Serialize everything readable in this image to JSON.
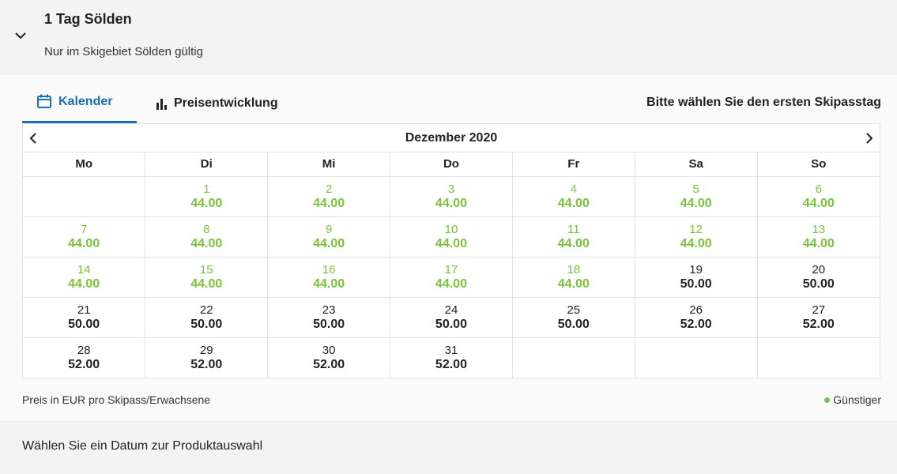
{
  "product": {
    "title": "1 Tag Sölden",
    "subtitle": "Nur im Skigebiet Sölden gültig"
  },
  "tabs": [
    {
      "label": "Kalender",
      "icon": "calendar-icon",
      "active": true
    },
    {
      "label": "Preisentwicklung",
      "icon": "bar-chart-icon",
      "active": false
    }
  ],
  "hint": "Bitte wählen Sie den ersten Skipasstag",
  "calendar": {
    "month": "Dezember 2020",
    "weekdays": [
      "Mo",
      "Di",
      "Mi",
      "Do",
      "Fr",
      "Sa",
      "So"
    ],
    "weeks": [
      [
        null,
        {
          "day": "1",
          "price": "44.00",
          "cheap": true
        },
        {
          "day": "2",
          "price": "44.00",
          "cheap": true
        },
        {
          "day": "3",
          "price": "44.00",
          "cheap": true
        },
        {
          "day": "4",
          "price": "44.00",
          "cheap": true
        },
        {
          "day": "5",
          "price": "44.00",
          "cheap": true
        },
        {
          "day": "6",
          "price": "44.00",
          "cheap": true
        }
      ],
      [
        {
          "day": "7",
          "price": "44.00",
          "cheap": true
        },
        {
          "day": "8",
          "price": "44.00",
          "cheap": true
        },
        {
          "day": "9",
          "price": "44.00",
          "cheap": true
        },
        {
          "day": "10",
          "price": "44.00",
          "cheap": true
        },
        {
          "day": "11",
          "price": "44.00",
          "cheap": true
        },
        {
          "day": "12",
          "price": "44.00",
          "cheap": true
        },
        {
          "day": "13",
          "price": "44.00",
          "cheap": true
        }
      ],
      [
        {
          "day": "14",
          "price": "44.00",
          "cheap": true
        },
        {
          "day": "15",
          "price": "44.00",
          "cheap": true
        },
        {
          "day": "16",
          "price": "44.00",
          "cheap": true
        },
        {
          "day": "17",
          "price": "44.00",
          "cheap": true
        },
        {
          "day": "18",
          "price": "44.00",
          "cheap": true
        },
        {
          "day": "19",
          "price": "50.00",
          "cheap": false
        },
        {
          "day": "20",
          "price": "50.00",
          "cheap": false
        }
      ],
      [
        {
          "day": "21",
          "price": "50.00",
          "cheap": false
        },
        {
          "day": "22",
          "price": "50.00",
          "cheap": false
        },
        {
          "day": "23",
          "price": "50.00",
          "cheap": false
        },
        {
          "day": "24",
          "price": "50.00",
          "cheap": false
        },
        {
          "day": "25",
          "price": "50.00",
          "cheap": false
        },
        {
          "day": "26",
          "price": "52.00",
          "cheap": false
        },
        {
          "day": "27",
          "price": "52.00",
          "cheap": false
        }
      ],
      [
        {
          "day": "28",
          "price": "52.00",
          "cheap": false
        },
        {
          "day": "29",
          "price": "52.00",
          "cheap": false
        },
        {
          "day": "30",
          "price": "52.00",
          "cheap": false
        },
        {
          "day": "31",
          "price": "52.00",
          "cheap": false
        },
        null,
        null,
        null
      ]
    ]
  },
  "footer": {
    "note": "Preis in EUR pro Skipass/Erwachsene",
    "legend": "Günstiger"
  },
  "bottom": {
    "text": "Wählen Sie ein Datum zur Produktauswahl"
  },
  "colors": {
    "accent": "#1a70b8",
    "cheap": "#79c33b",
    "text": "#222222"
  }
}
